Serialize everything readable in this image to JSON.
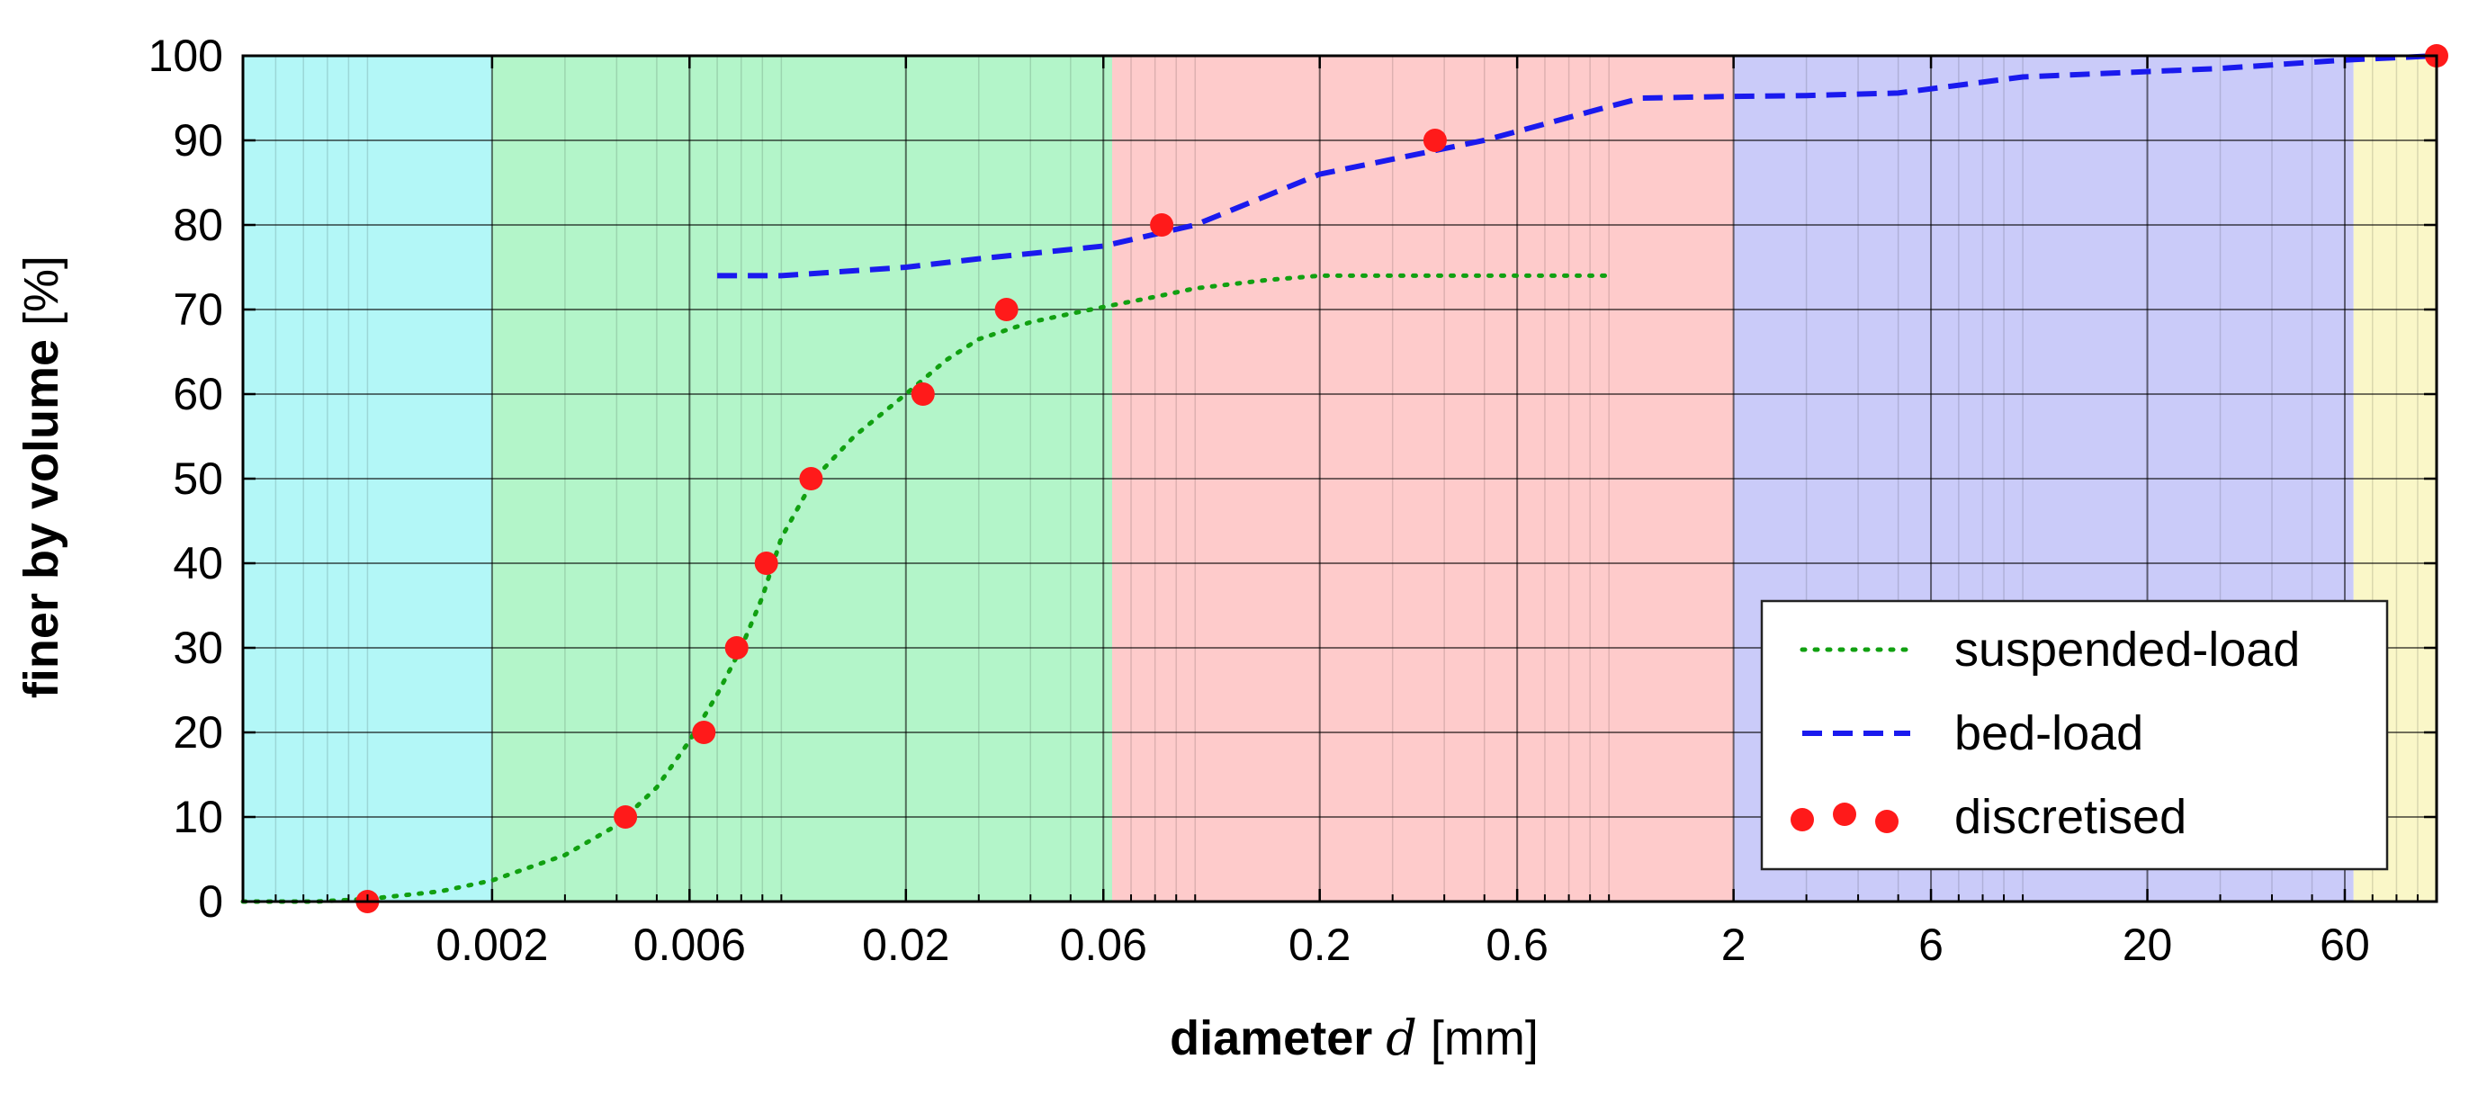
{
  "chart_data": {
    "type": "line",
    "x_scale": "log",
    "xlim": [
      0.0005,
      100
    ],
    "ylim": [
      0,
      100
    ],
    "grid": true,
    "legend_position": "lower-right",
    "x_ticks": [
      0.002,
      0.006,
      0.02,
      0.06,
      0.2,
      0.6,
      2,
      6,
      20,
      60
    ],
    "x_tick_labels": [
      "0.002",
      "0.006",
      "0.02",
      "0.06",
      "0.2",
      "0.6",
      "2",
      "6",
      "20",
      "60"
    ],
    "y_ticks": [
      0,
      10,
      20,
      30,
      40,
      50,
      60,
      70,
      80,
      90,
      100
    ],
    "y_tick_labels": [
      "0",
      "10",
      "20",
      "30",
      "40",
      "50",
      "60",
      "70",
      "80",
      "90",
      "100"
    ],
    "xlabel": {
      "bold": "diameter",
      "symbol": "d",
      "unit": "[mm]"
    },
    "ylabel": {
      "bold": "finer by volume",
      "unit": "[%]"
    },
    "bands": [
      {
        "from": 0.0005,
        "to": 0.002,
        "color": "#b3f7f7"
      },
      {
        "from": 0.002,
        "to": 0.063,
        "color": "#b3f5c9"
      },
      {
        "from": 0.063,
        "to": 2,
        "color": "#fecbcb"
      },
      {
        "from": 2,
        "to": 63,
        "color": "#cacbf9"
      },
      {
        "from": 63,
        "to": 100,
        "color": "#faf7c8"
      }
    ],
    "series": [
      {
        "name": "suspended-load",
        "style": "dotted",
        "color": "#11a011",
        "x": [
          0.0005,
          0.00075,
          0.001,
          0.0015,
          0.002,
          0.003,
          0.004,
          0.005,
          0.006,
          0.007,
          0.008,
          0.009,
          0.01,
          0.012,
          0.015,
          0.02,
          0.025,
          0.03,
          0.04,
          0.05,
          0.06,
          0.08,
          0.1,
          0.15,
          0.2,
          0.3,
          0.5,
          1.0
        ],
        "y": [
          0,
          0,
          0.3,
          1.2,
          2.5,
          5.5,
          9,
          13.5,
          19,
          24.5,
          30,
          36,
          43,
          50,
          55,
          60,
          64,
          66.5,
          68.5,
          69.5,
          70.3,
          71.5,
          72.5,
          73.5,
          74,
          74,
          74,
          74
        ]
      },
      {
        "name": "bed-load",
        "style": "dashed",
        "color": "#1a1aee",
        "x": [
          0.007,
          0.01,
          0.02,
          0.03,
          0.06,
          0.1,
          0.2,
          0.5,
          1.0,
          1.2,
          2,
          3,
          5,
          10,
          30,
          60,
          100
        ],
        "y": [
          74,
          74,
          75,
          76,
          77.5,
          80,
          86,
          90,
          94,
          95,
          95.2,
          95.3,
          95.6,
          97.5,
          98.5,
          99.5,
          100
        ]
      }
    ],
    "points": {
      "name": "discretised",
      "color": "#ff1a1a",
      "x": [
        0.001,
        0.0042,
        0.0065,
        0.0078,
        0.0092,
        0.0118,
        0.022,
        0.035,
        0.083,
        0.38,
        100
      ],
      "y": [
        0,
        10,
        20,
        30,
        40,
        50,
        60,
        70,
        80,
        90,
        100
      ]
    },
    "legend": [
      "suspended-load",
      "bed-load",
      "discretised"
    ]
  }
}
